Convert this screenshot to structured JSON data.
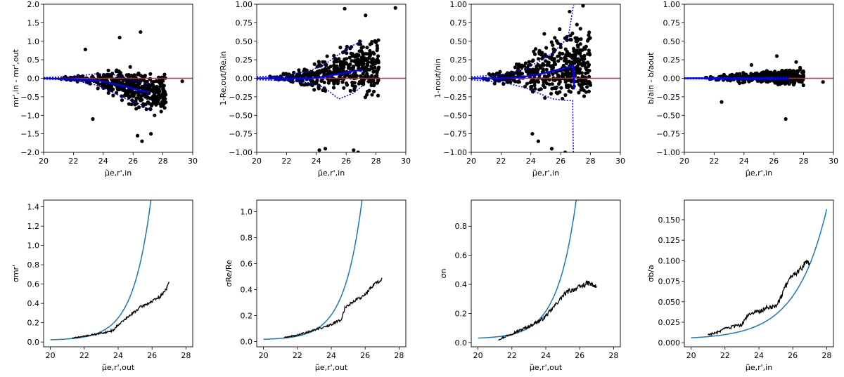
{
  "colors": {
    "scatter": "#000000",
    "zero_line": "#d62728",
    "blue_line": "#0000ff",
    "model_curve": "#1f77b4",
    "measured": "#000000"
  },
  "chart_data": [
    {
      "type": "scatter",
      "panel": "top-1",
      "xlabel": "μ̃e,r',in",
      "ylabel": "mr',in - mr',out",
      "xlim": [
        20,
        30
      ],
      "ylim": [
        -2.0,
        2.0
      ],
      "xticks": [
        20,
        22,
        24,
        26,
        28,
        30
      ],
      "yticks": [
        -2.0,
        -1.5,
        -1.0,
        -0.5,
        0.0,
        0.5,
        1.0,
        1.5,
        2.0
      ],
      "tick_decimals": 1,
      "scatter": {
        "x0": 20.5,
        "x1": 28.2,
        "y_center": [
          [
            20,
            0.0
          ],
          [
            23,
            -0.02
          ],
          [
            25,
            -0.12
          ],
          [
            27,
            -0.4
          ]
        ],
        "y_spread": [
          [
            20,
            0.02
          ],
          [
            22.5,
            0.05
          ],
          [
            24,
            0.2
          ],
          [
            25.5,
            0.35
          ],
          [
            27.5,
            0.4
          ]
        ],
        "n": 440,
        "seed": 11,
        "outliers": [
          [
            29.3,
            -0.08
          ],
          [
            26.6,
            -1.7
          ],
          [
            27.2,
            -1.5
          ],
          [
            26.3,
            -1.55
          ],
          [
            22.8,
            0.78
          ],
          [
            23.3,
            -1.1
          ],
          [
            26.5,
            1.25
          ],
          [
            25.1,
            1.1
          ]
        ]
      },
      "zero_line": 0.0,
      "trend": [
        [
          20,
          0.0
        ],
        [
          22,
          -0.02
        ],
        [
          23.5,
          -0.05
        ],
        [
          24.5,
          -0.12
        ],
        [
          25.5,
          -0.22
        ],
        [
          26.5,
          -0.33
        ],
        [
          27.1,
          -0.38
        ]
      ],
      "band_upper": [
        [
          20,
          0.02
        ],
        [
          22,
          0.05
        ],
        [
          23.5,
          0.12
        ],
        [
          24.5,
          0.12
        ],
        [
          25.5,
          0.0
        ],
        [
          26.5,
          -0.1
        ],
        [
          27.1,
          -0.15
        ]
      ],
      "band_lower": [
        [
          20,
          -0.02
        ],
        [
          22,
          -0.05
        ],
        [
          23.5,
          -0.18
        ],
        [
          24.5,
          -0.35
        ],
        [
          25.5,
          -0.55
        ],
        [
          26.5,
          -0.7
        ],
        [
          27.1,
          -0.85
        ]
      ]
    },
    {
      "type": "scatter",
      "panel": "top-2",
      "xlabel": "μ̃e,r',in",
      "ylabel": "1-Re,out/Re,in",
      "xlim": [
        20,
        30
      ],
      "ylim": [
        -1.0,
        1.0
      ],
      "xticks": [
        20,
        22,
        24,
        26,
        28,
        30
      ],
      "yticks": [
        -1.0,
        -0.75,
        -0.5,
        -0.25,
        0.0,
        0.25,
        0.5,
        0.75,
        1.0
      ],
      "tick_decimals": 2,
      "scatter": {
        "x0": 20.5,
        "x1": 28.2,
        "y_center": [
          [
            20,
            0.0
          ],
          [
            24,
            0.03
          ],
          [
            26,
            0.12
          ],
          [
            27,
            0.15
          ]
        ],
        "y_spread": [
          [
            20,
            0.02
          ],
          [
            22.5,
            0.05
          ],
          [
            24,
            0.15
          ],
          [
            25.5,
            0.22
          ],
          [
            27.5,
            0.28
          ]
        ],
        "n": 460,
        "seed": 23,
        "outliers": [
          [
            29.3,
            0.95
          ],
          [
            24.2,
            -0.97
          ],
          [
            24.6,
            -0.95
          ],
          [
            25.9,
            0.94
          ],
          [
            26.5,
            -0.97
          ],
          [
            27.3,
            0.85
          ],
          [
            26.8,
            -1.0
          ]
        ]
      },
      "zero_line": 0.0,
      "trend": [
        [
          20,
          0.0
        ],
        [
          22,
          0.0
        ],
        [
          23.5,
          0.0
        ],
        [
          24.5,
          0.02
        ],
        [
          25.5,
          0.06
        ],
        [
          26.5,
          0.1
        ],
        [
          27.1,
          0.11
        ]
      ],
      "band_upper": [
        [
          20,
          0.02
        ],
        [
          22,
          0.04
        ],
        [
          23.5,
          0.1
        ],
        [
          24.5,
          0.18
        ],
        [
          25.5,
          0.32
        ],
        [
          26.5,
          0.45
        ],
        [
          27.1,
          0.5
        ]
      ],
      "band_lower": [
        [
          20,
          -0.02
        ],
        [
          22,
          -0.03
        ],
        [
          23.5,
          -0.06
        ],
        [
          24.5,
          -0.12
        ],
        [
          25.5,
          -0.28
        ],
        [
          26.5,
          -0.2
        ],
        [
          27.1,
          -0.1
        ]
      ]
    },
    {
      "type": "scatter",
      "panel": "top-3",
      "xlabel": "μ̃e,r',in",
      "ylabel": "1-nout/nin",
      "xlim": [
        20,
        30
      ],
      "ylim": [
        -1.0,
        1.0
      ],
      "xticks": [
        20,
        22,
        24,
        26,
        28,
        30
      ],
      "yticks": [
        -1.0,
        -0.75,
        -0.5,
        -0.25,
        0.0,
        0.25,
        0.5,
        0.75,
        1.0
      ],
      "tick_decimals": 2,
      "scatter": {
        "x0": 20.5,
        "x1": 28.0,
        "y_center": [
          [
            20,
            0.0
          ],
          [
            23,
            0.02
          ],
          [
            25,
            0.1
          ],
          [
            27,
            0.2
          ]
        ],
        "y_spread": [
          [
            20,
            0.03
          ],
          [
            22.5,
            0.08
          ],
          [
            24,
            0.22
          ],
          [
            25.5,
            0.3
          ],
          [
            27.5,
            0.35
          ]
        ],
        "n": 460,
        "seed": 37,
        "outliers": [
          [
            24.1,
            -0.75
          ],
          [
            24.5,
            -0.85
          ],
          [
            25.4,
            -0.95
          ],
          [
            26.3,
            -1.0
          ],
          [
            27.5,
            0.98
          ],
          [
            26.6,
            0.9
          ],
          [
            24.9,
            0.6
          ]
        ]
      },
      "zero_line": 0.0,
      "trend": [
        [
          20,
          0.0
        ],
        [
          22,
          0.0
        ],
        [
          23.5,
          0.02
        ],
        [
          24.5,
          0.05
        ],
        [
          25.5,
          0.1
        ],
        [
          26.5,
          0.15
        ],
        [
          26.85,
          0.17
        ],
        [
          26.9,
          -0.15
        ]
      ],
      "band_upper": [
        [
          20,
          0.02
        ],
        [
          22,
          0.05
        ],
        [
          23.5,
          0.12
        ],
        [
          24.5,
          0.22
        ],
        [
          25.5,
          0.35
        ],
        [
          26.5,
          0.55
        ],
        [
          26.85,
          0.98
        ],
        [
          26.9,
          0.98
        ]
      ],
      "band_lower": [
        [
          20,
          -0.02
        ],
        [
          22,
          -0.05
        ],
        [
          23.5,
          -0.12
        ],
        [
          24.5,
          -0.2
        ],
        [
          25.5,
          -0.28
        ],
        [
          26.5,
          -0.3
        ],
        [
          26.8,
          -0.3
        ],
        [
          26.85,
          -1.0
        ]
      ]
    },
    {
      "type": "scatter",
      "panel": "top-4",
      "xlabel": "μ̃e,r',in",
      "ylabel": "b/ain - b/aout",
      "xlim": [
        20,
        30
      ],
      "ylim": [
        -1.0,
        1.0
      ],
      "xticks": [
        20,
        22,
        24,
        26,
        28,
        30
      ],
      "yticks": [
        -1.0,
        -0.75,
        -0.5,
        -0.25,
        0.0,
        0.25,
        0.5,
        0.75,
        1.0
      ],
      "tick_decimals": 2,
      "scatter": {
        "x0": 21.0,
        "x1": 28.0,
        "y_center": [
          [
            20,
            0.0
          ],
          [
            27,
            0.02
          ]
        ],
        "y_spread": [
          [
            20,
            0.01
          ],
          [
            22.5,
            0.03
          ],
          [
            24,
            0.05
          ],
          [
            26,
            0.07
          ],
          [
            27.5,
            0.09
          ]
        ],
        "n": 420,
        "seed": 53,
        "outliers": [
          [
            26.8,
            -0.55
          ],
          [
            29.3,
            -0.05
          ],
          [
            26.2,
            0.3
          ],
          [
            27.5,
            0.22
          ],
          [
            22.5,
            -0.32
          ],
          [
            24.5,
            0.18
          ]
        ]
      },
      "zero_line": 0.0,
      "trend": [
        [
          20,
          0.0
        ],
        [
          24,
          0.0
        ],
        [
          27,
          0.0
        ]
      ],
      "band_upper": [
        [
          20,
          0.005
        ],
        [
          24,
          0.01
        ],
        [
          27,
          0.02
        ]
      ],
      "band_lower": [
        [
          20,
          -0.005
        ],
        [
          24,
          -0.01
        ],
        [
          27,
          -0.02
        ]
      ]
    },
    {
      "type": "line",
      "panel": "bottom-1",
      "xlabel": "μ̃e,r',out",
      "ylabel": "σmr'",
      "xlim": [
        19.6,
        28.4
      ],
      "ylim": [
        -0.05,
        1.47
      ],
      "xticks": [
        20,
        22,
        24,
        26,
        28
      ],
      "yticks": [
        0.0,
        0.2,
        0.4,
        0.6,
        0.8,
        1.0,
        1.2,
        1.4
      ],
      "tick_decimals": 1,
      "model": {
        "a": 0.023,
        "b": 0.0052,
        "c": 0.95,
        "x0": 20,
        "x1": 28
      },
      "measured": [
        [
          21.3,
          0.04
        ],
        [
          22,
          0.06
        ],
        [
          23,
          0.09
        ],
        [
          23.7,
          0.12
        ],
        [
          24,
          0.18
        ],
        [
          24.6,
          0.26
        ],
        [
          25.3,
          0.36
        ],
        [
          26,
          0.42
        ],
        [
          26.5,
          0.47
        ],
        [
          26.9,
          0.57
        ],
        [
          27.0,
          0.62
        ]
      ],
      "measured_noise": 0.018,
      "seed": 71
    },
    {
      "type": "line",
      "panel": "bottom-2",
      "xlabel": "μ̃e,r',out",
      "ylabel": "σRe/Re",
      "xlim": [
        19.6,
        28.4
      ],
      "ylim": [
        -0.04,
        1.09
      ],
      "xticks": [
        20,
        22,
        24,
        26,
        28
      ],
      "yticks": [
        0.0,
        0.2,
        0.4,
        0.6,
        0.8,
        1.0
      ],
      "tick_decimals": 1,
      "model": {
        "a": 0.018,
        "b": 0.0043,
        "c": 0.95,
        "x0": 20,
        "x1": 28
      },
      "measured": [
        [
          21.2,
          0.03
        ],
        [
          22,
          0.05
        ],
        [
          23,
          0.09
        ],
        [
          23.8,
          0.12
        ],
        [
          24.6,
          0.17
        ],
        [
          24.8,
          0.26
        ],
        [
          25.3,
          0.31
        ],
        [
          26,
          0.36
        ],
        [
          26.5,
          0.44
        ],
        [
          27.0,
          0.48
        ]
      ],
      "measured_noise": 0.015,
      "seed": 89
    },
    {
      "type": "line",
      "panel": "bottom-3",
      "xlabel": "μ̃e,r',out",
      "ylabel": "σn",
      "xlim": [
        19.6,
        28.4
      ],
      "ylim": [
        -0.03,
        0.98
      ],
      "xticks": [
        20,
        22,
        24,
        26,
        28
      ],
      "yticks": [
        0.0,
        0.2,
        0.4,
        0.6,
        0.8
      ],
      "tick_decimals": 1,
      "model": {
        "a": 0.03,
        "b": 0.0052,
        "c": 0.9,
        "x0": 20,
        "x1": 28
      },
      "measured": [
        [
          21.2,
          0.02
        ],
        [
          22,
          0.06
        ],
        [
          23,
          0.11
        ],
        [
          23.8,
          0.16
        ],
        [
          24.3,
          0.22
        ],
        [
          25,
          0.32
        ],
        [
          25.3,
          0.35
        ],
        [
          26,
          0.38
        ],
        [
          26.5,
          0.41
        ],
        [
          27.0,
          0.38
        ]
      ],
      "measured_noise": 0.02,
      "seed": 97
    },
    {
      "type": "line",
      "panel": "bottom-4",
      "xlabel": "μ̃e,r',in",
      "ylabel": "σb/a",
      "xlim": [
        19.6,
        28.4
      ],
      "ylim": [
        -0.005,
        0.174
      ],
      "xticks": [
        20,
        22,
        24,
        26,
        28
      ],
      "yticks": [
        0.0,
        0.025,
        0.05,
        0.075,
        0.1,
        0.125,
        0.15
      ],
      "tick_decimals": 3,
      "model": {
        "a": 0.006,
        "b": 0.00195,
        "c": 0.55,
        "x0": 20,
        "x1": 28
      },
      "measured": [
        [
          21.0,
          0.01
        ],
        [
          21.5,
          0.012
        ],
        [
          22,
          0.017
        ],
        [
          23,
          0.022
        ],
        [
          23.4,
          0.035
        ],
        [
          24,
          0.038
        ],
        [
          24.5,
          0.043
        ],
        [
          25,
          0.045
        ],
        [
          25.3,
          0.055
        ],
        [
          25.6,
          0.07
        ],
        [
          26,
          0.082
        ],
        [
          26.5,
          0.09
        ],
        [
          26.8,
          0.1
        ],
        [
          27.0,
          0.098
        ]
      ],
      "measured_noise": 0.004,
      "seed": 103
    }
  ]
}
